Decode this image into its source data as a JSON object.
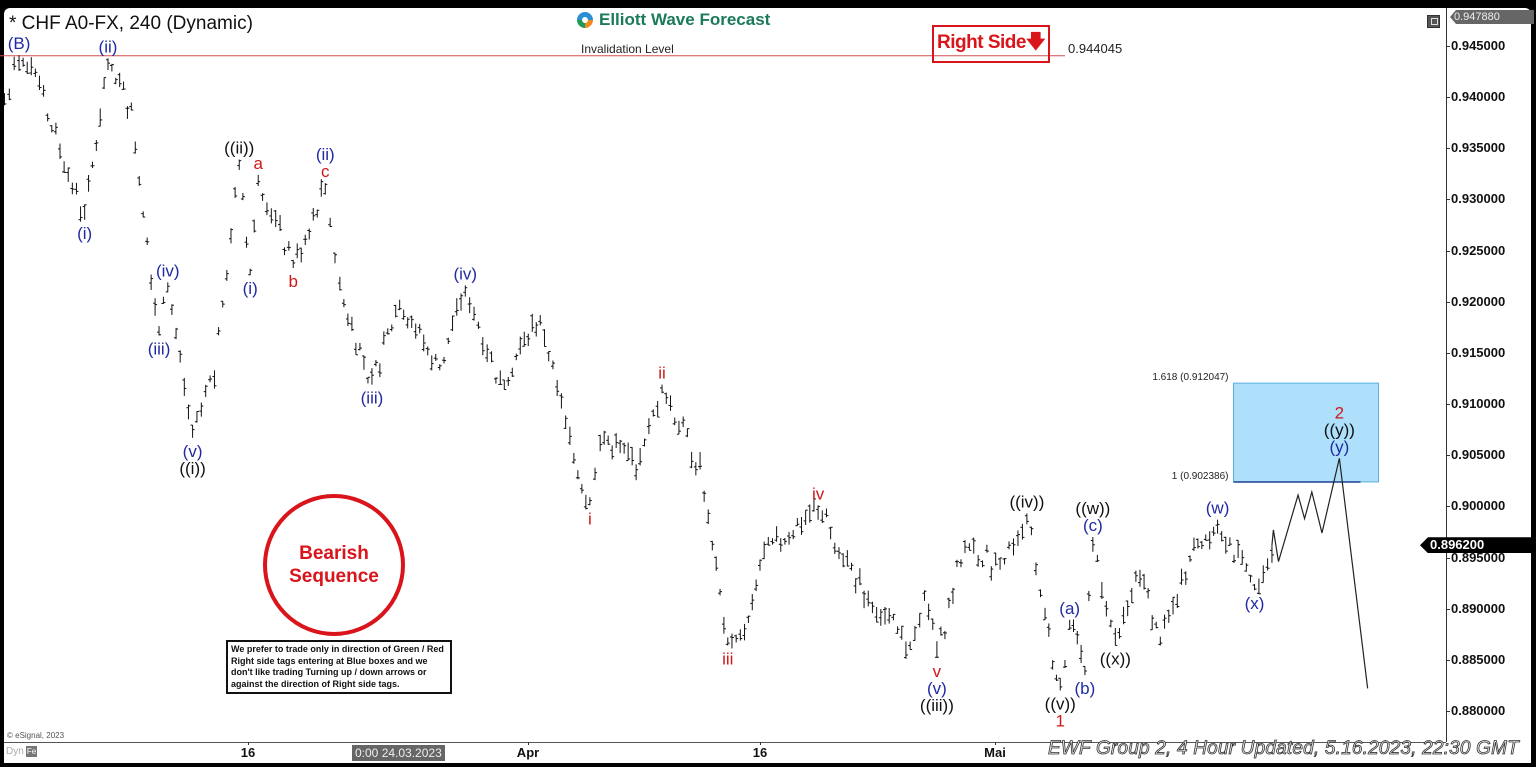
{
  "header": {
    "title": "* CHF A0-FX, 240 (Dynamic)",
    "logo_text": "Elliott Wave Forecast",
    "right_side_tag": "Right Side",
    "right_side_arrow": "down-arrow-icon"
  },
  "invalidation": {
    "label": "Invalidation Level",
    "value": "0.944045",
    "price": 0.944045
  },
  "price_axis": {
    "top_tag": "0.947880",
    "current_price_tag": "0.896200",
    "ticks": [
      "0.945000",
      "0.940000",
      "0.935000",
      "0.930000",
      "0.925000",
      "0.920000",
      "0.915000",
      "0.910000",
      "0.905000",
      "0.900000",
      "0.895000",
      "0.890000",
      "0.885000",
      "0.880000"
    ]
  },
  "time_axis": {
    "ticks": [
      {
        "label": "16",
        "date": "2023-03-16"
      },
      {
        "label": "Apr",
        "date": "2023-04-01"
      },
      {
        "label": "16",
        "date": "2023-04-16"
      },
      {
        "label": "Mai",
        "date": "2023-05-01"
      }
    ],
    "cursor_label": "0:00 24.03.2023"
  },
  "footer": {
    "copyright": "© eSignal, 2023",
    "dyn_label": "Dyn",
    "dyn_icon_label": "Fe",
    "update_text": "EWF Group 2, 4 Hour Updated, 5.16.2023, 22:30 GMT"
  },
  "bearish_badge": {
    "line1": "Bearish",
    "line2": "Sequence"
  },
  "notice": "We prefer to trade only in direction of Green / Red Right side tags entering at Blue boxes and we don't like trading Turning up / down arrows or against the direction of Right side tags.",
  "colors": {
    "blue": "#1f2aa3",
    "red": "#d01818",
    "black": "#111111",
    "box": "#aee0fb",
    "box_border": "#5ab0e0",
    "invalidation": "#d05050",
    "bars": "#111111"
  },
  "chart_data": {
    "type": "ohlc",
    "symbol": "CHF A0-FX",
    "interval": "240",
    "ylim": [
      0.8775,
      0.9485
    ],
    "swings": [
      {
        "t": "2023-03-02 02:00",
        "price": 0.9392,
        "kind": "low",
        "labels": []
      },
      {
        "t": "2023-03-02 22:00",
        "price": 0.9441,
        "kind": "high",
        "labels": [
          {
            "text": "(B)",
            "color": "blue"
          }
        ]
      },
      {
        "t": "2023-03-04 02:00",
        "price": 0.9407,
        "kind": "low",
        "labels": []
      },
      {
        "t": "2023-03-06 16:00",
        "price": 0.928,
        "kind": "low",
        "labels": [
          {
            "text": "(i)",
            "color": "blue"
          }
        ]
      },
      {
        "t": "2023-03-08 00:00",
        "price": 0.9438,
        "kind": "high",
        "labels": [
          {
            "text": "(ii)",
            "color": "blue"
          }
        ]
      },
      {
        "t": "2023-03-09 08:00",
        "price": 0.9387,
        "kind": "low",
        "labels": []
      },
      {
        "t": "2023-03-10 22:00",
        "price": 0.9167,
        "kind": "low",
        "labels": [
          {
            "text": "(iii)",
            "color": "blue"
          }
        ]
      },
      {
        "t": "2023-03-11 10:00",
        "price": 0.9219,
        "kind": "high",
        "labels": [
          {
            "text": "(iv)",
            "color": "blue"
          }
        ]
      },
      {
        "t": "2023-03-12 20:00",
        "price": 0.9067,
        "kind": "low",
        "labels": [
          {
            "text": "(v)",
            "color": "blue"
          },
          {
            "text": "((i))",
            "color": "black"
          }
        ]
      },
      {
        "t": "2023-03-14 02:00",
        "price": 0.9133,
        "kind": "high",
        "labels": []
      },
      {
        "t": "2023-03-15 12:00",
        "price": 0.9339,
        "kind": "high",
        "labels": [
          {
            "text": "((ii))",
            "color": "black"
          }
        ]
      },
      {
        "t": "2023-03-16 03:00",
        "price": 0.9226,
        "kind": "low",
        "labels": [
          {
            "text": "(i)",
            "color": "blue"
          }
        ]
      },
      {
        "t": "2023-03-16 14:00",
        "price": 0.9324,
        "kind": "high",
        "labels": [
          {
            "text": "a",
            "color": "red"
          }
        ]
      },
      {
        "t": "2023-03-18 14:00",
        "price": 0.9233,
        "kind": "low",
        "labels": [
          {
            "text": "b",
            "color": "red"
          }
        ]
      },
      {
        "t": "2023-03-20 10:00",
        "price": 0.9316,
        "kind": "high",
        "labels": [
          {
            "text": "c",
            "color": "red"
          },
          {
            "text": "(ii)",
            "color": "blue"
          }
        ]
      },
      {
        "t": "2023-03-21 06:00",
        "price": 0.9211,
        "kind": "low",
        "labels": []
      },
      {
        "t": "2023-03-23 02:00",
        "price": 0.9119,
        "kind": "low",
        "labels": [
          {
            "text": "(iii)",
            "color": "blue"
          }
        ]
      },
      {
        "t": "2023-03-24 16:00",
        "price": 0.9202,
        "kind": "high",
        "labels": []
      },
      {
        "t": "2023-03-26 23:00",
        "price": 0.9133,
        "kind": "low",
        "labels": []
      },
      {
        "t": "2023-03-28 10:00",
        "price": 0.9216,
        "kind": "high",
        "labels": [
          {
            "text": "(iv)",
            "color": "blue"
          }
        ]
      },
      {
        "t": "2023-03-30 10:00",
        "price": 0.9119,
        "kind": "low",
        "labels": []
      },
      {
        "t": "2023-04-01 19:00",
        "price": 0.9187,
        "kind": "high",
        "labels": []
      },
      {
        "t": "2023-04-03 17:00",
        "price": 0.906,
        "kind": "low",
        "labels": []
      },
      {
        "t": "2023-04-05 00:00",
        "price": 0.9001,
        "kind": "low",
        "labels": [
          {
            "text": "i",
            "color": "red"
          }
        ]
      },
      {
        "t": "2023-04-05 16:00",
        "price": 0.907,
        "kind": "high",
        "labels": []
      },
      {
        "t": "2023-04-08 06:00",
        "price": 0.904,
        "kind": "low",
        "labels": []
      },
      {
        "t": "2023-04-09 16:00",
        "price": 0.9119,
        "kind": "high",
        "labels": [
          {
            "text": "ii",
            "color": "red"
          }
        ]
      },
      {
        "t": "2023-04-12 03:00",
        "price": 0.9036,
        "kind": "low",
        "labels": []
      },
      {
        "t": "2023-04-12 22:00",
        "price": 0.8957,
        "kind": "low",
        "labels": []
      },
      {
        "t": "2023-04-13 22:00",
        "price": 0.8864,
        "kind": "low",
        "labels": [
          {
            "text": "iii",
            "color": "red"
          }
        ]
      },
      {
        "t": "2023-04-15 00:00",
        "price": 0.8869,
        "kind": "low",
        "labels": []
      },
      {
        "t": "2023-04-16 00:00",
        "price": 0.8948,
        "kind": "high",
        "labels": []
      },
      {
        "t": "2023-04-19 17:00",
        "price": 0.9001,
        "kind": "high",
        "labels": [
          {
            "text": "iv",
            "color": "red"
          }
        ]
      },
      {
        "t": "2023-04-22 09:00",
        "price": 0.8923,
        "kind": "low",
        "labels": []
      },
      {
        "t": "2023-04-25 14:00",
        "price": 0.886,
        "kind": "low",
        "labels": []
      },
      {
        "t": "2023-04-26 12:00",
        "price": 0.8918,
        "kind": "high",
        "labels": []
      },
      {
        "t": "2023-04-27 07:00",
        "price": 0.8852,
        "kind": "low",
        "labels": [
          {
            "text": "v",
            "color": "red"
          },
          {
            "text": "(v)",
            "color": "blue"
          },
          {
            "text": "((iii))",
            "color": "black"
          }
        ]
      },
      {
        "t": "2023-04-29 02:00",
        "price": 0.8967,
        "kind": "high",
        "labels": []
      },
      {
        "t": "2023-05-01 07:00",
        "price": 0.8938,
        "kind": "low",
        "labels": []
      },
      {
        "t": "2023-05-02 20:00",
        "price": 0.8993,
        "kind": "high",
        "labels": [
          {
            "text": "((iv))",
            "color": "black"
          }
        ]
      },
      {
        "t": "2023-05-03 21:00",
        "price": 0.8889,
        "kind": "low",
        "labels": []
      },
      {
        "t": "2023-05-04 18:00",
        "price": 0.882,
        "kind": "low",
        "labels": [
          {
            "text": "((v))",
            "color": "black"
          },
          {
            "text": "1",
            "color": "red"
          }
        ]
      },
      {
        "t": "2023-05-05 07:00",
        "price": 0.8889,
        "kind": "high",
        "labels": [
          {
            "text": "(a)",
            "color": "blue"
          }
        ]
      },
      {
        "t": "2023-05-06 04:00",
        "price": 0.8835,
        "kind": "low",
        "labels": [
          {
            "text": "(b)",
            "color": "blue"
          }
        ]
      },
      {
        "t": "2023-05-06 15:00",
        "price": 0.897,
        "kind": "high",
        "labels": [
          {
            "text": "(c)",
            "color": "blue"
          },
          {
            "text": "((w))",
            "color": "black"
          }
        ]
      },
      {
        "t": "2023-05-07 22:00",
        "price": 0.8864,
        "kind": "low",
        "labels": [
          {
            "text": "((x))",
            "color": "black"
          }
        ]
      },
      {
        "t": "2023-05-09 08:00",
        "price": 0.8938,
        "kind": "high",
        "labels": []
      },
      {
        "t": "2023-05-10 12:00",
        "price": 0.8864,
        "kind": "low",
        "labels": []
      },
      {
        "t": "2023-05-12 05:00",
        "price": 0.8952,
        "kind": "high",
        "labels": []
      },
      {
        "t": "2023-05-13 19:00",
        "price": 0.8987,
        "kind": "high",
        "labels": [
          {
            "text": "(w)",
            "color": "blue"
          }
        ]
      },
      {
        "t": "2023-05-15 22:00",
        "price": 0.8918,
        "kind": "low",
        "labels": [
          {
            "text": "(x)",
            "color": "blue"
          }
        ]
      },
      {
        "t": "2023-05-16 22:00",
        "price": 0.8962,
        "kind": "high",
        "labels": []
      }
    ],
    "projection": [
      {
        "t": "2023-05-16 22:00",
        "price": 0.8962,
        "kind": "high",
        "labels": []
      },
      {
        "t": "2023-05-17 00:00",
        "price": 0.8977,
        "kind": "high",
        "labels": []
      },
      {
        "t": "2023-05-17 07:00",
        "price": 0.8946,
        "kind": "low",
        "labels": []
      },
      {
        "t": "2023-05-18 10:00",
        "price": 0.9011,
        "kind": "high",
        "labels": []
      },
      {
        "t": "2023-05-18 19:00",
        "price": 0.8988,
        "kind": "low",
        "labels": []
      },
      {
        "t": "2023-05-19 05:00",
        "price": 0.9014,
        "kind": "high",
        "labels": []
      },
      {
        "t": "2023-05-19 19:00",
        "price": 0.8974,
        "kind": "low",
        "labels": []
      },
      {
        "t": "2023-05-20 19:00",
        "price": 0.9047,
        "kind": "high",
        "labels": [
          {
            "text": "(y)",
            "color": "blue"
          },
          {
            "text": "((y))",
            "color": "black"
          },
          {
            "text": "2",
            "color": "red"
          }
        ]
      },
      {
        "t": "2023-05-22 10:00",
        "price": 0.8822,
        "kind": "low",
        "labels": []
      }
    ],
    "target_box": {
      "t_start": "2023-05-14 17:00",
      "t_end": "2023-05-23 01:00",
      "upper_price": 0.912047,
      "lower_price": 0.902386,
      "upper_label": "1.618 (0.912047)",
      "lower_label": "1 (0.902386)"
    }
  }
}
